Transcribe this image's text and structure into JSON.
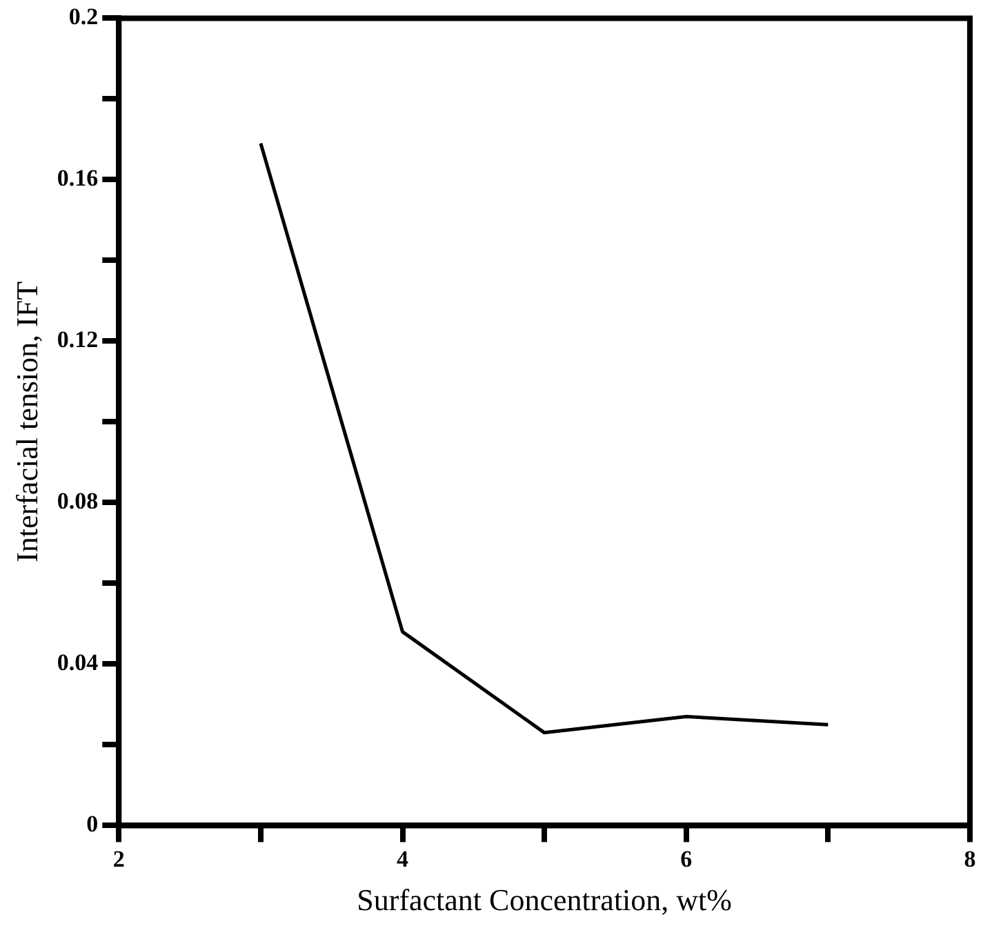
{
  "chart_data": {
    "type": "line",
    "xlabel": "Surfactant Concentration, wt%",
    "ylabel": "Interfacial tension, IFT",
    "x": [
      3,
      4,
      5,
      6,
      7
    ],
    "series": [
      {
        "color": "#000000",
        "values": [
          0.169,
          0.048,
          0.023,
          0.027,
          0.025
        ]
      }
    ],
    "xlim": [
      2,
      8
    ],
    "xticks": [
      2,
      {
        "value": 3,
        "label": null
      },
      4,
      {
        "value": 5,
        "label": null
      },
      6,
      {
        "value": 7,
        "label": null
      },
      8
    ],
    "ylim": [
      0,
      0.2
    ],
    "yticks": [
      0,
      {
        "value": 0.02,
        "label": null
      },
      0.04,
      {
        "value": 0.06,
        "label": null
      },
      0.08,
      {
        "value": 0.1,
        "label": null
      },
      0.12,
      {
        "value": 0.14,
        "label": null
      },
      0.16,
      {
        "value": 0.18,
        "label": null
      },
      0.2
    ],
    "grid": false,
    "legend": false,
    "marker": "none",
    "line_style": "solid"
  }
}
